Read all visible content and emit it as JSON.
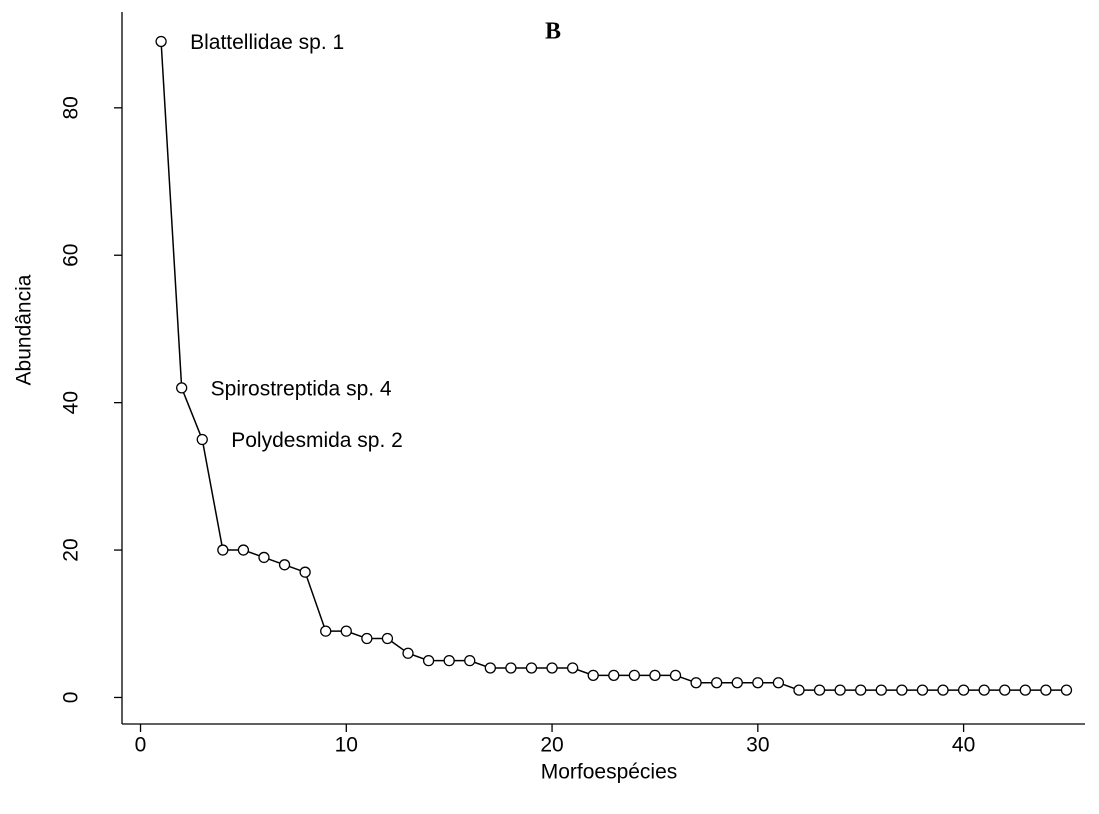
{
  "chart_data": {
    "type": "line",
    "title": "B",
    "x_label": "Morfoespécies",
    "y_label": "Abundância",
    "annotations": [
      "Blattellidae sp. 1",
      "Spirostreptida sp. 4",
      "Polydesmida sp. 2"
    ],
    "x": [
      1,
      2,
      3,
      4,
      5,
      6,
      7,
      8,
      9,
      10,
      11,
      12,
      13,
      14,
      15,
      16,
      17,
      18,
      19,
      20,
      21,
      22,
      23,
      24,
      25,
      26,
      27,
      28,
      29,
      30,
      31,
      32,
      33,
      34,
      35,
      36,
      37,
      38,
      39,
      40,
      41,
      42,
      43,
      44,
      45
    ],
    "values": [
      89,
      42,
      35,
      20,
      20,
      19,
      18,
      17,
      9,
      9,
      8,
      8,
      6,
      5,
      5,
      5,
      4,
      4,
      4,
      4,
      4,
      3,
      3,
      3,
      3,
      3,
      2,
      2,
      2,
      2,
      2,
      1,
      1,
      1,
      1,
      1,
      1,
      1,
      1,
      1,
      1,
      1,
      1,
      1,
      1
    ],
    "color": "#000000",
    "xlim": [
      -0.9,
      45.9
    ],
    "xticks": [
      0,
      10,
      20,
      30,
      40
    ],
    "ylim": [
      -3.6,
      93
    ],
    "yticks": [
      0,
      20,
      40,
      60,
      80
    ]
  }
}
